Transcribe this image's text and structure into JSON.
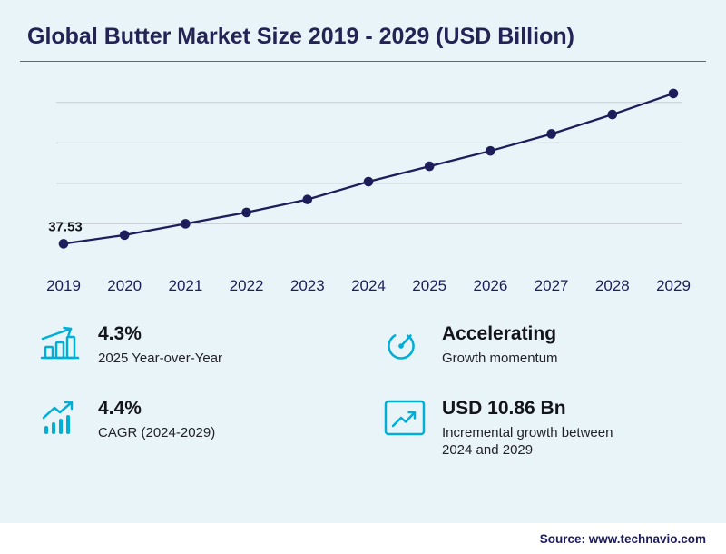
{
  "header": {
    "title": "Global Butter Market Size 2019 - 2029 (USD Billion)"
  },
  "chart_data": {
    "type": "line",
    "title": "Global Butter Market Size 2019 - 2029 (USD Billion)",
    "x": [
      2019,
      2020,
      2021,
      2022,
      2023,
      2024,
      2025,
      2026,
      2027,
      2028,
      2029
    ],
    "values": [
      37.53,
      38.6,
      40.0,
      41.4,
      43.0,
      45.2,
      47.1,
      49.0,
      51.1,
      53.5,
      56.1
    ],
    "point_label": "37.53",
    "ylim": [
      36,
      58
    ],
    "gridlines": [
      40,
      45,
      50,
      55
    ],
    "grid": true,
    "legend": "none",
    "xlabel": "",
    "ylabel": "USD Billion"
  },
  "stats": [
    {
      "value": "4.3%",
      "label": "2025 Year-over-Year",
      "icon": "growth-bars-icon"
    },
    {
      "value": "Accelerating",
      "label": "Growth momentum",
      "icon": "speedometer-icon"
    },
    {
      "value": "4.4%",
      "label": "CAGR (2024-2029)",
      "icon": "trend-arrow-icon"
    },
    {
      "value": "USD 10.86 Bn",
      "label": "Incremental growth between 2024 and 2029",
      "icon": "chart-box-icon"
    }
  ],
  "footer": {
    "source": "Source: www.technavio.com"
  },
  "colors": {
    "background": "#e9f4f8",
    "navy": "#1d1d5c",
    "accent": "#00aed6",
    "gridline": "#c5cdd3",
    "title_text": "#232355"
  }
}
